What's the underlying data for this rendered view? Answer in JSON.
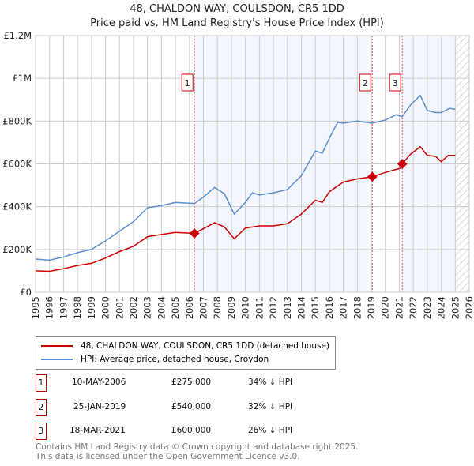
{
  "title": "48, CHALDON WAY, COULSDON, CR5 1DD",
  "subtitle": "Price paid vs. HM Land Registry's House Price Index (HPI)",
  "chart_data": {
    "type": "line",
    "title": "48, CHALDON WAY, COULSDON, CR5 1DD",
    "xlim": [
      1995,
      2026
    ],
    "ylim": [
      0,
      1200000
    ],
    "yticks": [
      0,
      200000,
      400000,
      600000,
      800000,
      1000000,
      1200000
    ],
    "ytick_labels": [
      "£0",
      "£200K",
      "£400K",
      "£600K",
      "£800K",
      "£1M",
      "£1.2M"
    ],
    "xticks": [
      "1995",
      "1996",
      "1997",
      "1998",
      "1999",
      "2000",
      "2001",
      "2002",
      "2003",
      "2004",
      "2005",
      "2006",
      "2007",
      "2008",
      "2009",
      "2010",
      "2011",
      "2012",
      "2013",
      "2014",
      "2015",
      "2016",
      "2017",
      "2018",
      "2019",
      "2020",
      "2021",
      "2022",
      "2023",
      "2024",
      "2025",
      "2026"
    ],
    "grid": true,
    "forecast_hatch_from": 2025.0,
    "series": [
      {
        "name": "48, CHALDON WAY, COULSDON, CR5 1DD (detached house)",
        "color": "#cc0000",
        "x": [
          1995,
          1996,
          1997,
          1998,
          1999,
          2000,
          2001,
          2002,
          2003,
          2004,
          2005,
          2006.36,
          2007.8,
          2008.5,
          2009.2,
          2010,
          2011,
          2012,
          2013,
          2014,
          2015,
          2015.5,
          2016,
          2017,
          2018,
          2019.07,
          2020,
          2021.1,
          2021.21,
          2021.8,
          2022.5,
          2023,
          2023.6,
          2024,
          2024.5,
          2025
        ],
        "values": [
          100000,
          98000,
          110000,
          125000,
          135000,
          160000,
          190000,
          215000,
          260000,
          270000,
          280000,
          275000,
          325000,
          305000,
          250000,
          300000,
          310000,
          310000,
          320000,
          365000,
          430000,
          420000,
          470000,
          515000,
          530000,
          540000,
          560000,
          580000,
          600000,
          645000,
          680000,
          640000,
          635000,
          610000,
          640000,
          640000
        ]
      },
      {
        "name": "HPI: Average price, detached house, Croydon",
        "color": "#5b8fd0",
        "x": [
          1995,
          1996,
          1997,
          1998,
          1999,
          2000,
          2001,
          2002,
          2003,
          2004,
          2005,
          2006.36,
          2007,
          2007.8,
          2008.5,
          2009.2,
          2010,
          2010.5,
          2011,
          2012,
          2013,
          2014,
          2015,
          2015.5,
          2016,
          2016.6,
          2017,
          2018,
          2019.07,
          2020,
          2020.8,
          2021.2,
          2021.8,
          2022.5,
          2023,
          2023.6,
          2024,
          2024.6,
          2025
        ],
        "values": [
          155000,
          150000,
          165000,
          185000,
          200000,
          240000,
          285000,
          330000,
          395000,
          405000,
          420000,
          415000,
          445000,
          490000,
          460000,
          365000,
          420000,
          465000,
          455000,
          465000,
          480000,
          545000,
          660000,
          650000,
          720000,
          795000,
          790000,
          800000,
          790000,
          805000,
          830000,
          820000,
          875000,
          920000,
          850000,
          840000,
          840000,
          860000,
          855000
        ]
      }
    ],
    "sales": [
      {
        "label": "1",
        "x": 2006.36,
        "date": "10-MAY-2006",
        "price": 275000,
        "price_text": "£275,000",
        "hpi_text": "34% ↓ HPI"
      },
      {
        "label": "2",
        "x": 2019.07,
        "date": "25-JAN-2019",
        "price": 540000,
        "price_text": "£540,000",
        "hpi_text": "32% ↓ HPI"
      },
      {
        "label": "3",
        "x": 2021.21,
        "date": "18-MAR-2021",
        "price": 600000,
        "price_text": "£600,000",
        "hpi_text": "26% ↓ HPI"
      }
    ]
  },
  "legend": {
    "red": "48, CHALDON WAY, COULSDON, CR5 1DD (detached house)",
    "blue": "HPI: Average price, detached house, Croydon"
  },
  "footer": {
    "line1": "Contains HM Land Registry data © Crown copyright and database right 2025.",
    "line2": "This data is licensed under the Open Government Licence v3.0."
  }
}
